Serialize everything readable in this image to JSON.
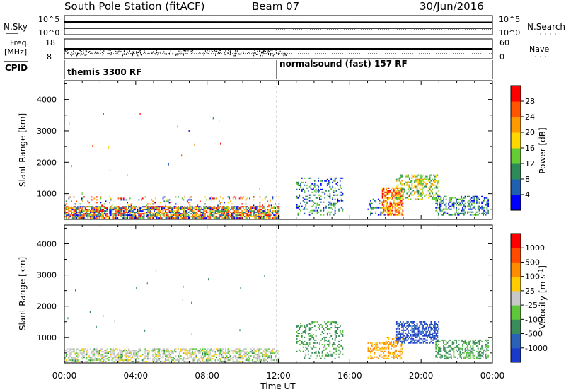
{
  "header": {
    "station": "South Pole Station (fitACF)",
    "beam": "Beam 07",
    "date": "30/Jun/2016"
  },
  "top_panels": {
    "nsky_label": "N.Sky",
    "nsky_ticks": [
      "10^5",
      "10^0"
    ],
    "nsearch_label": "N.Search",
    "nsearch_ticks": [
      "10^5",
      "10^0"
    ],
    "freq_label_line1": "Freq.",
    "freq_label_line2": "[MHz]",
    "freq_ticks": [
      "18",
      "8"
    ],
    "nave_label": "Nave",
    "nave_ticks": [
      "60",
      "0"
    ],
    "cpid_label": "CPID",
    "cpid_segments": [
      {
        "label": "themis 3300 RF",
        "start_hour": 0
      },
      {
        "label": "normalsound (fast) 157 RF",
        "start_hour": 12
      }
    ]
  },
  "chart_data": [
    {
      "type": "heatmap",
      "name": "power",
      "ylabel": "Slant Range [km]",
      "xlabel": "",
      "x_range_hours": [
        0,
        24
      ],
      "ylim": [
        180,
        4600
      ],
      "yticks": [
        "4000",
        "3000",
        "2000",
        "1000"
      ],
      "colorbar": {
        "label": "Power [dB]",
        "range": [
          0,
          32
        ],
        "tick_labels": [
          "28",
          "24",
          "20",
          "16",
          "12",
          "8",
          "4"
        ],
        "colors": [
          "#0000ff",
          "#2060b0",
          "#2e8b57",
          "#66cc33",
          "#ffd700",
          "#ff9900",
          "#ff5500",
          "#ff0000"
        ]
      },
      "echo_regions": [
        {
          "t0": 0.0,
          "t1": 12.0,
          "r0": 200,
          "r1": 600,
          "level": "mixed",
          "density": 0.75
        },
        {
          "t0": 0.0,
          "t1": 12.0,
          "r0": 600,
          "r1": 900,
          "level": "mixed",
          "density": 0.12
        },
        {
          "t0": 13.0,
          "t1": 15.6,
          "r0": 300,
          "r1": 1500,
          "level": "low",
          "density": 0.25
        },
        {
          "t0": 17.0,
          "t1": 18.0,
          "r0": 300,
          "r1": 800,
          "level": "low",
          "density": 0.3
        },
        {
          "t0": 17.8,
          "t1": 19.0,
          "r0": 300,
          "r1": 1200,
          "level": "high",
          "density": 0.6
        },
        {
          "t0": 18.6,
          "t1": 21.0,
          "r0": 800,
          "r1": 1600,
          "level": "mid",
          "density": 0.45
        },
        {
          "t0": 20.8,
          "t1": 23.8,
          "r0": 300,
          "r1": 900,
          "level": "low",
          "density": 0.45
        }
      ]
    },
    {
      "type": "heatmap",
      "name": "velocity",
      "ylabel": "Slant Range [km]",
      "xlabel": "Time UT",
      "x_range_hours": [
        0,
        24
      ],
      "xticks": [
        "00:00",
        "04:00",
        "08:00",
        "12:00",
        "16:00",
        "20:00",
        "00:00"
      ],
      "ylim": [
        180,
        4600
      ],
      "yticks": [
        "4000",
        "3000",
        "2000",
        "1000"
      ],
      "colorbar": {
        "label": "Velocity [m s^-1]",
        "tick_labels": [
          "1000",
          "500",
          "100",
          "25",
          "-25",
          "-100",
          "-500",
          "-1000"
        ],
        "colors": [
          "#1a3acc",
          "#2a62b8",
          "#3a8c5a",
          "#5ec83a",
          "#c8c8c8",
          "#ffcc00",
          "#ff8c00",
          "#ff4a00",
          "#ff0000"
        ]
      },
      "echo_regions": [
        {
          "t0": 0.0,
          "t1": 12.0,
          "r0": 200,
          "r1": 650,
          "level": "neutral",
          "density": 0.55
        },
        {
          "t0": 13.0,
          "t1": 15.6,
          "r0": 300,
          "r1": 1500,
          "level": "green",
          "density": 0.25
        },
        {
          "t0": 17.0,
          "t1": 18.0,
          "r0": 300,
          "r1": 800,
          "level": "orange",
          "density": 0.4
        },
        {
          "t0": 18.0,
          "t1": 19.0,
          "r0": 300,
          "r1": 1000,
          "level": "orange",
          "density": 0.45
        },
        {
          "t0": 18.6,
          "t1": 21.0,
          "r0": 800,
          "r1": 1500,
          "level": "blue",
          "density": 0.55
        },
        {
          "t0": 20.8,
          "t1": 23.8,
          "r0": 300,
          "r1": 900,
          "level": "green",
          "density": 0.5
        }
      ]
    }
  ]
}
